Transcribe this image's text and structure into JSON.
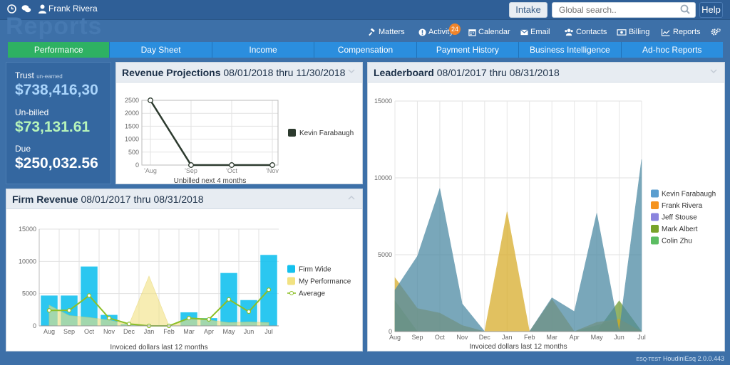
{
  "topbar": {
    "username": "Frank Rivera",
    "intake_label": "Intake",
    "search_placeholder": "Global search..",
    "help_label": "Help"
  },
  "watermark": "Reports",
  "nav": {
    "items": [
      {
        "label": "Matters",
        "icon": "gavel-icon"
      },
      {
        "label": "Activity",
        "icon": "alert-icon",
        "badge": "24"
      },
      {
        "label": "Calendar",
        "icon": "calendar-icon"
      },
      {
        "label": "Email",
        "icon": "envelope-icon"
      },
      {
        "label": "Contacts",
        "icon": "users-icon"
      },
      {
        "label": "Billing",
        "icon": "money-icon"
      },
      {
        "label": "Reports",
        "icon": "line-chart-icon"
      }
    ]
  },
  "tabs": [
    "Performance",
    "Day Sheet",
    "Income",
    "Compensation",
    "Payment History",
    "Business Intelligence",
    "Ad-hoc Reports"
  ],
  "active_tab": "Performance",
  "summary": {
    "trust_label": "Trust",
    "trust_sub": "un-earned",
    "trust_value": "$738,416,30",
    "unbilled_label": "Un-billed",
    "unbilled_value": "$73,131.61",
    "due_label": "Due",
    "due_value": "$250,032.56"
  },
  "revenue_projections": {
    "title": "Revenue Projections",
    "range": "08/01/2018 thru 11/30/2018",
    "chart_data": {
      "type": "line",
      "x": [
        "'Aug",
        "'Sep",
        "'Oct",
        "'Nov"
      ],
      "series": [
        {
          "name": "Kevin Farabaugh",
          "values": [
            2500,
            0,
            0,
            0
          ],
          "color": "#2c3a2e"
        }
      ],
      "ylim": [
        0,
        2500
      ],
      "yticks": [
        0,
        500,
        1000,
        1500,
        2000,
        2500
      ],
      "xlabel": "Unbilled next 4 months",
      "legend": "right"
    }
  },
  "firm_revenue": {
    "title": "Firm Revenue",
    "range": "08/01/2017 thru 08/31/2018",
    "chart_data": {
      "type": "bar",
      "categories": [
        "Aug",
        "Sep",
        "Oct",
        "Nov",
        "Dec",
        "Jan",
        "Feb",
        "Mar",
        "Apr",
        "May",
        "Jun",
        "Jul"
      ],
      "series": [
        {
          "name": "Firm Wide",
          "type": "bar",
          "color": "#14c1ee",
          "values": [
            4700,
            4700,
            9200,
            1700,
            300,
            0,
            0,
            2100,
            1200,
            8200,
            4000,
            11000
          ]
        },
        {
          "name": "My Performance",
          "type": "area",
          "color": "#f2e282",
          "values": [
            3200,
            1600,
            1300,
            900,
            200,
            7700,
            0,
            1000,
            900,
            500,
            600,
            500
          ]
        },
        {
          "name": "Average",
          "type": "line",
          "color": "#8cbf26",
          "values": [
            2400,
            2400,
            4700,
            1200,
            300,
            0,
            0,
            1200,
            1000,
            4100,
            2200,
            5600
          ]
        }
      ],
      "ylim": [
        0,
        15000
      ],
      "yticks": [
        0,
        5000,
        10000,
        15000
      ],
      "xlabel": "Invoiced dollars last 12 months",
      "legend": "right"
    }
  },
  "leaderboard": {
    "title": "Leaderboard",
    "range": "08/01/2017 thru 08/31/2018",
    "chart_data": {
      "type": "area",
      "categories": [
        "Aug",
        "Sep",
        "Oct",
        "Nov",
        "Dec",
        "Jan",
        "Feb",
        "Mar",
        "Apr",
        "May",
        "Jun",
        "Jul"
      ],
      "series": [
        {
          "name": "Kevin Farabaugh",
          "color": "#5b9ecf",
          "values": [
            2700,
            4900,
            9300,
            1800,
            0,
            0,
            0,
            2200,
            1300,
            7700,
            0,
            11200
          ]
        },
        {
          "name": "Frank Rivera",
          "color": "#f5931d",
          "values": [
            3500,
            1500,
            1200,
            400,
            0,
            7800,
            0,
            2100,
            0,
            600,
            800,
            0
          ]
        },
        {
          "name": "Jeff Stouse",
          "color": "#8a84de",
          "values": [
            0,
            0,
            0,
            0,
            0,
            0,
            0,
            0,
            0,
            0,
            0,
            0
          ]
        },
        {
          "name": "Mark Albert",
          "color": "#78a32a",
          "values": [
            2000,
            0,
            0,
            0,
            0,
            0,
            0,
            0,
            0,
            0,
            2000,
            0
          ]
        },
        {
          "name": "Colin Zhu",
          "color": "#5cbd62",
          "values": [
            0,
            0,
            0,
            0,
            0,
            0,
            0,
            0,
            0,
            400,
            800,
            0
          ]
        }
      ],
      "ylim": [
        0,
        15000
      ],
      "yticks": [
        0,
        5000,
        10000,
        15000
      ],
      "xlabel": "Invoiced dollars last 12 months",
      "legend": "right"
    }
  },
  "footer": {
    "env": "ESQ-TEST",
    "version": "HoudiniEsq 2.0.0.443"
  }
}
